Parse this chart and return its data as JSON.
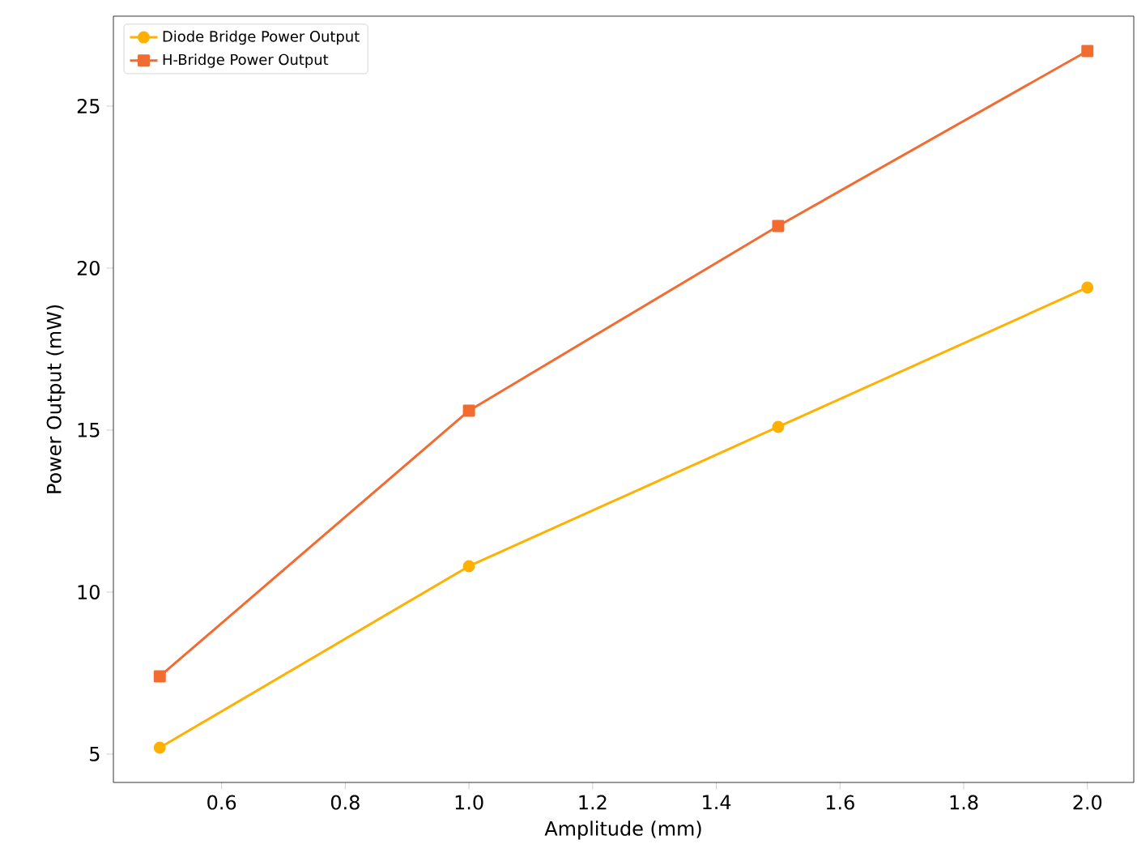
{
  "chart_data": {
    "type": "line",
    "xlabel": "Amplitude (mm)",
    "ylabel": "Power Output (mW)",
    "x": [
      0.5,
      1.0,
      1.5,
      2.0
    ],
    "series": [
      {
        "name": "Diode Bridge Power Output",
        "color": "#ffb000",
        "marker": "circle",
        "values": [
          5.2,
          10.8,
          15.1,
          19.4
        ]
      },
      {
        "name": "H-Bridge Power Output",
        "color": "#f26b30",
        "marker": "square",
        "values": [
          7.4,
          15.6,
          21.3,
          26.7
        ]
      }
    ],
    "xlim": [
      0.425,
      2.075
    ],
    "ylim": [
      4.125,
      27.775
    ],
    "xticks": [
      {
        "value": 0.6,
        "label": "0.6"
      },
      {
        "value": 0.8,
        "label": "0.8"
      },
      {
        "value": 1.0,
        "label": "1.0"
      },
      {
        "value": 1.2,
        "label": "1.2"
      },
      {
        "value": 1.4,
        "label": "1.4"
      },
      {
        "value": 1.6,
        "label": "1.6"
      },
      {
        "value": 1.8,
        "label": "1.8"
      },
      {
        "value": 2.0,
        "label": "2.0"
      }
    ],
    "yticks": [
      5,
      10,
      15,
      20,
      25
    ],
    "legend": "top left",
    "line_style": "solid",
    "grid": false
  }
}
